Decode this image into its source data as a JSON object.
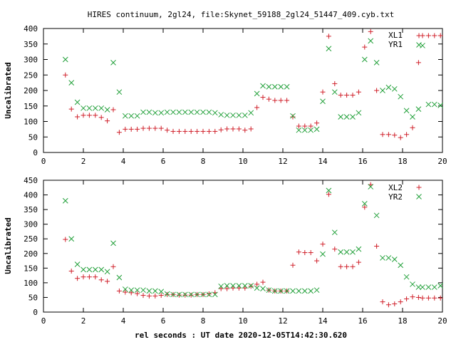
{
  "chart_data": [
    {
      "type": "scatter",
      "title": "HIRES continuum, 2gl24, file:Skynet_59188_2gl24_51447_409.cyb.txt",
      "xlabel": "",
      "ylabel": "Uncalibrated",
      "xlim": [
        0,
        20
      ],
      "ylim": [
        0,
        400
      ],
      "xticks": [
        "0",
        "2",
        "4",
        "6",
        "8",
        "10",
        "12",
        "14",
        "16",
        "18",
        "20"
      ],
      "yticks": [
        "0",
        "50",
        "100",
        "150",
        "200",
        "250",
        "300",
        "350",
        "400"
      ],
      "legend_position": "top-right",
      "grid": false,
      "series": [
        {
          "name": "XL1",
          "marker": "plus",
          "color": "#d0202a",
          "points": [
            [
              1.1,
              250
            ],
            [
              1.4,
              140
            ],
            [
              1.7,
              115
            ],
            [
              2.0,
              120
            ],
            [
              2.3,
              120
            ],
            [
              2.6,
              120
            ],
            [
              2.9,
              113
            ],
            [
              3.2,
              102
            ],
            [
              3.5,
              138
            ],
            [
              3.8,
              65
            ],
            [
              4.1,
              75
            ],
            [
              4.4,
              75
            ],
            [
              4.7,
              75
            ],
            [
              5.0,
              78
            ],
            [
              5.3,
              78
            ],
            [
              5.6,
              78
            ],
            [
              5.9,
              78
            ],
            [
              6.2,
              72
            ],
            [
              6.5,
              68
            ],
            [
              6.8,
              68
            ],
            [
              7.1,
              68
            ],
            [
              7.4,
              68
            ],
            [
              7.7,
              68
            ],
            [
              8.0,
              68
            ],
            [
              8.3,
              68
            ],
            [
              8.6,
              68
            ],
            [
              8.9,
              73
            ],
            [
              9.2,
              76
            ],
            [
              9.5,
              76
            ],
            [
              9.8,
              76
            ],
            [
              10.1,
              72
            ],
            [
              10.4,
              76
            ],
            [
              10.7,
              145
            ],
            [
              11.0,
              178
            ],
            [
              11.3,
              172
            ],
            [
              11.6,
              168
            ],
            [
              11.9,
              168
            ],
            [
              12.2,
              168
            ],
            [
              12.5,
              115
            ],
            [
              12.8,
              85
            ],
            [
              13.1,
              85
            ],
            [
              13.4,
              85
            ],
            [
              13.7,
              95
            ],
            [
              14.0,
              195
            ],
            [
              14.3,
              375
            ],
            [
              14.6,
              222
            ],
            [
              14.9,
              185
            ],
            [
              15.2,
              185
            ],
            [
              15.5,
              185
            ],
            [
              15.8,
              195
            ],
            [
              16.1,
              340
            ],
            [
              16.4,
              390
            ],
            [
              16.7,
              200
            ],
            [
              17.0,
              58
            ],
            [
              17.3,
              58
            ],
            [
              17.6,
              56
            ],
            [
              17.9,
              48
            ],
            [
              18.2,
              58
            ],
            [
              18.5,
              80
            ],
            [
              18.8,
              290
            ],
            [
              19.0,
              377
            ],
            [
              19.3,
              377
            ],
            [
              19.6,
              377
            ],
            [
              19.9,
              377
            ]
          ]
        },
        {
          "name": "YR1",
          "marker": "cross",
          "color": "#22a03a",
          "points": [
            [
              1.1,
              300
            ],
            [
              1.4,
              225
            ],
            [
              1.7,
              162
            ],
            [
              2.0,
              143
            ],
            [
              2.3,
              143
            ],
            [
              2.6,
              143
            ],
            [
              2.9,
              143
            ],
            [
              3.2,
              138
            ],
            [
              3.5,
              290
            ],
            [
              3.8,
              195
            ],
            [
              4.1,
              118
            ],
            [
              4.4,
              118
            ],
            [
              4.7,
              118
            ],
            [
              5.0,
              130
            ],
            [
              5.3,
              130
            ],
            [
              5.6,
              128
            ],
            [
              5.9,
              128
            ],
            [
              6.2,
              130
            ],
            [
              6.5,
              130
            ],
            [
              6.8,
              130
            ],
            [
              7.1,
              130
            ],
            [
              7.4,
              130
            ],
            [
              7.7,
              130
            ],
            [
              8.0,
              130
            ],
            [
              8.3,
              130
            ],
            [
              8.6,
              128
            ],
            [
              8.9,
              122
            ],
            [
              9.2,
              120
            ],
            [
              9.5,
              120
            ],
            [
              9.8,
              120
            ],
            [
              10.1,
              120
            ],
            [
              10.4,
              128
            ],
            [
              10.7,
              190
            ],
            [
              11.0,
              215
            ],
            [
              11.3,
              212
            ],
            [
              11.6,
              212
            ],
            [
              11.9,
              212
            ],
            [
              12.2,
              212
            ],
            [
              12.5,
              118
            ],
            [
              12.8,
              72
            ],
            [
              13.1,
              72
            ],
            [
              13.4,
              72
            ],
            [
              13.7,
              75
            ],
            [
              14.0,
              165
            ],
            [
              14.3,
              335
            ],
            [
              14.6,
              195
            ],
            [
              14.9,
              115
            ],
            [
              15.2,
              115
            ],
            [
              15.5,
              115
            ],
            [
              15.8,
              128
            ],
            [
              16.1,
              300
            ],
            [
              16.4,
              360
            ],
            [
              16.7,
              290
            ],
            [
              17.0,
              200
            ],
            [
              17.3,
              210
            ],
            [
              17.6,
              205
            ],
            [
              17.9,
              180
            ],
            [
              18.2,
              135
            ],
            [
              18.5,
              115
            ],
            [
              18.8,
              140
            ],
            [
              19.0,
              345
            ],
            [
              19.3,
              155
            ],
            [
              19.6,
              155
            ],
            [
              19.9,
              152
            ]
          ]
        }
      ]
    },
    {
      "type": "scatter",
      "title": "",
      "xlabel": "rel seconds : UT date 2020-12-05T14:42:30.620",
      "ylabel": "Uncalibrated",
      "xlim": [
        0,
        20
      ],
      "ylim": [
        0,
        450
      ],
      "xticks": [
        "0",
        "2",
        "4",
        "6",
        "8",
        "10",
        "12",
        "14",
        "16",
        "18",
        "20"
      ],
      "yticks": [
        "0",
        "50",
        "100",
        "150",
        "200",
        "250",
        "300",
        "350",
        "400",
        "450"
      ],
      "legend_position": "top-right",
      "grid": false,
      "series": [
        {
          "name": "XL2",
          "marker": "plus",
          "color": "#d0202a",
          "points": [
            [
              1.1,
              248
            ],
            [
              1.4,
              140
            ],
            [
              1.7,
              115
            ],
            [
              2.0,
              120
            ],
            [
              2.3,
              120
            ],
            [
              2.6,
              120
            ],
            [
              2.9,
              110
            ],
            [
              3.2,
              105
            ],
            [
              3.5,
              155
            ],
            [
              3.8,
              72
            ],
            [
              4.1,
              68
            ],
            [
              4.4,
              66
            ],
            [
              4.7,
              63
            ],
            [
              5.0,
              57
            ],
            [
              5.3,
              55
            ],
            [
              5.6,
              55
            ],
            [
              5.9,
              57
            ],
            [
              6.2,
              60
            ],
            [
              6.5,
              60
            ],
            [
              6.8,
              58
            ],
            [
              7.1,
              58
            ],
            [
              7.4,
              58
            ],
            [
              7.7,
              60
            ],
            [
              8.0,
              60
            ],
            [
              8.3,
              62
            ],
            [
              8.6,
              66
            ],
            [
              8.9,
              80
            ],
            [
              9.2,
              80
            ],
            [
              9.5,
              82
            ],
            [
              9.8,
              82
            ],
            [
              10.1,
              82
            ],
            [
              10.4,
              88
            ],
            [
              10.7,
              95
            ],
            [
              11.0,
              102
            ],
            [
              11.3,
              75
            ],
            [
              11.6,
              72
            ],
            [
              11.9,
              72
            ],
            [
              12.2,
              72
            ],
            [
              12.5,
              160
            ],
            [
              12.8,
              205
            ],
            [
              13.1,
              203
            ],
            [
              13.4,
              203
            ],
            [
              13.7,
              175
            ],
            [
              14.0,
              232
            ],
            [
              14.3,
              402
            ],
            [
              14.6,
              215
            ],
            [
              14.9,
              155
            ],
            [
              15.2,
              155
            ],
            [
              15.5,
              155
            ],
            [
              15.8,
              170
            ],
            [
              16.1,
              358
            ],
            [
              16.4,
              435
            ],
            [
              16.7,
              225
            ],
            [
              17.0,
              35
            ],
            [
              17.3,
              25
            ],
            [
              17.6,
              28
            ],
            [
              17.9,
              35
            ],
            [
              18.2,
              45
            ],
            [
              18.5,
              52
            ],
            [
              18.8,
              50
            ],
            [
              19.0,
              48
            ],
            [
              19.3,
              48
            ],
            [
              19.6,
              48
            ],
            [
              19.9,
              48
            ]
          ]
        },
        {
          "name": "YR2",
          "marker": "cross",
          "color": "#22a03a",
          "points": [
            [
              1.1,
              380
            ],
            [
              1.4,
              250
            ],
            [
              1.7,
              163
            ],
            [
              2.0,
              145
            ],
            [
              2.3,
              145
            ],
            [
              2.6,
              145
            ],
            [
              2.9,
              145
            ],
            [
              3.2,
              138
            ],
            [
              3.5,
              235
            ],
            [
              3.8,
              118
            ],
            [
              4.1,
              78
            ],
            [
              4.4,
              75
            ],
            [
              4.7,
              75
            ],
            [
              5.0,
              75
            ],
            [
              5.3,
              72
            ],
            [
              5.6,
              72
            ],
            [
              5.9,
              70
            ],
            [
              6.2,
              62
            ],
            [
              6.5,
              60
            ],
            [
              6.8,
              60
            ],
            [
              7.1,
              60
            ],
            [
              7.4,
              60
            ],
            [
              7.7,
              60
            ],
            [
              8.0,
              60
            ],
            [
              8.3,
              60
            ],
            [
              8.6,
              60
            ],
            [
              8.9,
              88
            ],
            [
              9.2,
              90
            ],
            [
              9.5,
              90
            ],
            [
              9.8,
              90
            ],
            [
              10.1,
              90
            ],
            [
              10.4,
              90
            ],
            [
              10.7,
              82
            ],
            [
              11.0,
              80
            ],
            [
              11.3,
              75
            ],
            [
              11.6,
              72
            ],
            [
              11.9,
              72
            ],
            [
              12.2,
              72
            ],
            [
              12.5,
              72
            ],
            [
              12.8,
              72
            ],
            [
              13.1,
              72
            ],
            [
              13.4,
              72
            ],
            [
              13.7,
              75
            ],
            [
              14.0,
              198
            ],
            [
              14.3,
              415
            ],
            [
              14.6,
              272
            ],
            [
              14.9,
              205
            ],
            [
              15.2,
              205
            ],
            [
              15.5,
              205
            ],
            [
              15.8,
              215
            ],
            [
              16.1,
              370
            ],
            [
              16.4,
              428
            ],
            [
              16.7,
              330
            ],
            [
              17.0,
              185
            ],
            [
              17.3,
              185
            ],
            [
              17.6,
              180
            ],
            [
              17.9,
              160
            ],
            [
              18.2,
              120
            ],
            [
              18.5,
              95
            ],
            [
              18.8,
              85
            ],
            [
              19.0,
              85
            ],
            [
              19.3,
              85
            ],
            [
              19.6,
              85
            ],
            [
              19.9,
              90
            ]
          ]
        }
      ]
    }
  ]
}
